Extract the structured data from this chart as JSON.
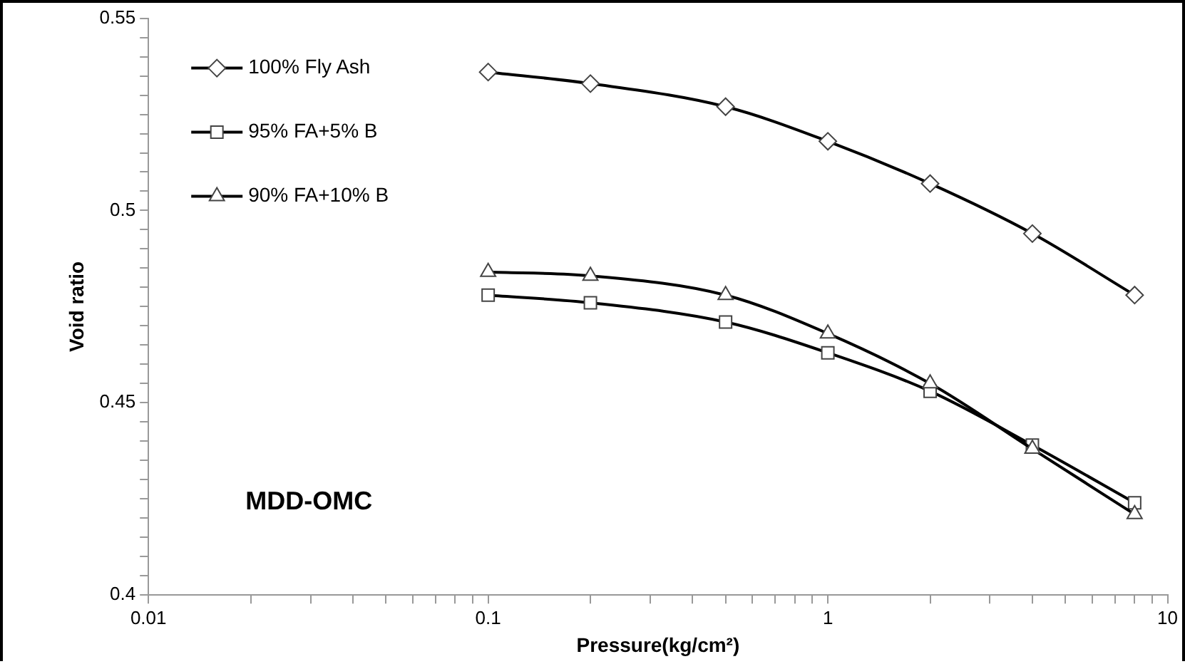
{
  "chart_data": {
    "type": "line",
    "xlabel": "Pressure(kg/cm²)",
    "ylabel": "Void ratio",
    "log": "x",
    "grid": false,
    "legend": "top left",
    "line_style": "solid",
    "x": [
      0.1,
      0.2,
      0.5,
      1,
      2,
      4,
      8
    ],
    "series": [
      {
        "name": "100% Fly Ash",
        "color": "#000000",
        "marker": "diamond",
        "values": [
          0.536,
          0.533,
          0.527,
          0.518,
          0.507,
          0.494,
          0.478
        ]
      },
      {
        "name": "95% FA+5% B",
        "color": "#000000",
        "marker": "square",
        "values": [
          0.478,
          0.476,
          0.471,
          0.463,
          0.453,
          0.439,
          0.424
        ]
      },
      {
        "name": "90% FA+10% B",
        "color": "#000000",
        "marker": "triangle",
        "values": [
          0.484,
          0.483,
          0.478,
          0.468,
          0.455,
          0.438,
          0.421
        ]
      }
    ],
    "xlim": [
      0.01,
      10
    ],
    "xticks": [
      0.01,
      {
        "value": 0.02,
        "label": null
      },
      {
        "value": 0.03,
        "label": null
      },
      {
        "value": 0.04,
        "label": null
      },
      {
        "value": 0.05,
        "label": null
      },
      {
        "value": 0.06,
        "label": null
      },
      {
        "value": 0.07,
        "label": null
      },
      {
        "value": 0.08,
        "label": null
      },
      {
        "value": 0.09,
        "label": null
      },
      0.1,
      {
        "value": 0.2,
        "label": null
      },
      {
        "value": 0.3,
        "label": null
      },
      {
        "value": 0.4,
        "label": null
      },
      {
        "value": 0.5,
        "label": null
      },
      {
        "value": 0.6,
        "label": null
      },
      {
        "value": 0.7,
        "label": null
      },
      {
        "value": 0.8,
        "label": null
      },
      {
        "value": 0.9,
        "label": null
      },
      1,
      {
        "value": 2,
        "label": null
      },
      {
        "value": 3,
        "label": null
      },
      {
        "value": 4,
        "label": null
      },
      {
        "value": 5,
        "label": null
      },
      {
        "value": 6,
        "label": null
      },
      {
        "value": 7,
        "label": null
      },
      {
        "value": 8,
        "label": null
      },
      {
        "value": 9,
        "label": null
      },
      10
    ],
    "ylim": [
      0.4,
      0.55
    ],
    "yticks": [
      0.4,
      {
        "value": 0.405,
        "label": null
      },
      {
        "value": 0.41,
        "label": null
      },
      {
        "value": 0.415,
        "label": null
      },
      {
        "value": 0.42,
        "label": null
      },
      {
        "value": 0.425,
        "label": null
      },
      {
        "value": 0.43,
        "label": null
      },
      {
        "value": 0.435,
        "label": null
      },
      {
        "value": 0.44,
        "label": null
      },
      {
        "value": 0.445,
        "label": null
      },
      0.45,
      {
        "value": 0.455,
        "label": null
      },
      {
        "value": 0.46,
        "label": null
      },
      {
        "value": 0.465,
        "label": null
      },
      {
        "value": 0.47,
        "label": null
      },
      {
        "value": 0.475,
        "label": null
      },
      {
        "value": 0.48,
        "label": null
      },
      {
        "value": 0.485,
        "label": null
      },
      {
        "value": 0.49,
        "label": null
      },
      {
        "value": 0.495,
        "label": null
      },
      0.5,
      {
        "value": 0.505,
        "label": null
      },
      {
        "value": 0.51,
        "label": null
      },
      {
        "value": 0.515,
        "label": null
      },
      {
        "value": 0.52,
        "label": null
      },
      {
        "value": 0.525,
        "label": null
      },
      {
        "value": 0.53,
        "label": null
      },
      {
        "value": 0.535,
        "label": null
      },
      {
        "value": 0.54,
        "label": null
      },
      {
        "value": 0.545,
        "label": null
      },
      0.55
    ],
    "annotations": [
      "MDD-OMC"
    ]
  }
}
